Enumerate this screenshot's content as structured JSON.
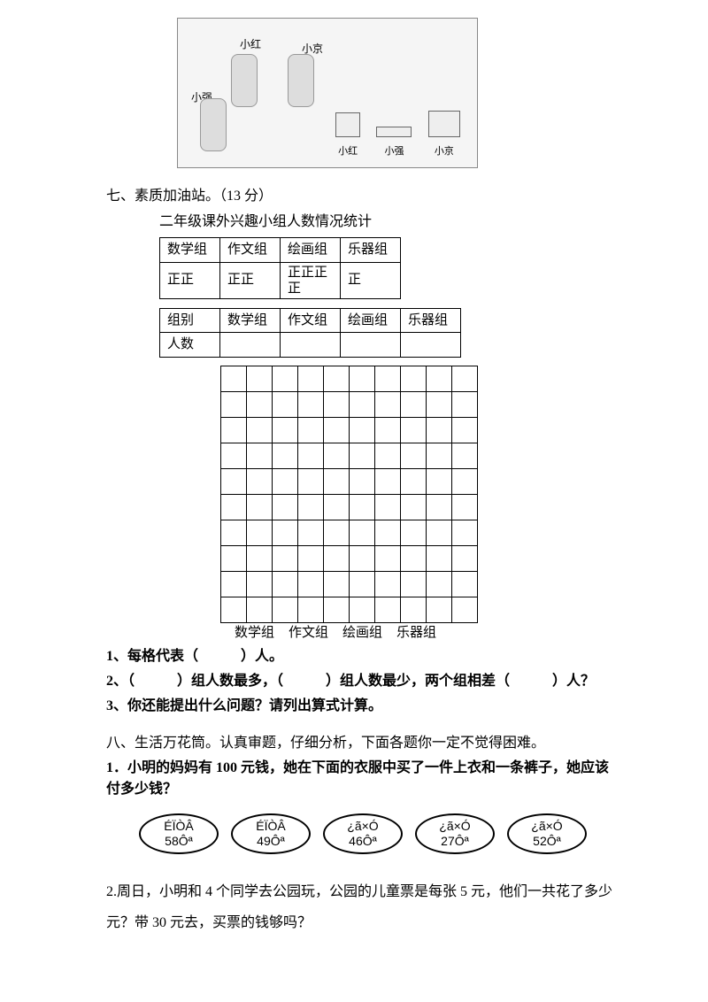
{
  "topImage": {
    "labels": {
      "xiaohong": "小红",
      "xiaojing": "小京",
      "xiaoqiang": "小强"
    },
    "rightLabels": [
      "小红",
      "小强",
      "小京"
    ]
  },
  "section7": {
    "title": "七、素质加油站。（13 分）",
    "subtitle": "二年级课外兴趣小组人数情况统计",
    "table1": {
      "headers": [
        "数学组",
        "作文组",
        "绘画组",
        "乐器组"
      ],
      "row": [
        "正正",
        "正正",
        "正正正正",
        "正"
      ]
    },
    "table2": {
      "headers": [
        "组别",
        "数学组",
        "作文组",
        "绘画组",
        "乐器组"
      ],
      "row1": "人数"
    },
    "gridLabels": [
      "数学组",
      "作文组",
      "绘画组",
      "乐器组"
    ],
    "gridRows": 10,
    "gridCols": 10,
    "q1": "1、每格代表（　　　）人。",
    "q2": "2、（　　　）组人数最多，（　　　）组人数最少，两个组相差（　　　）人？",
    "q3": "3、你还能提出什么问题？请列出算式计算。"
  },
  "section8": {
    "title": "八、生活万花筒。认真审题，仔细分析，下面各题你一定不觉得困难。",
    "q1title": "1．小明的妈妈有 100 元钱，她在下面的衣服中买了一件上衣和一条裤子，她应该付多少钱？",
    "prices": [
      {
        "label": "ÉÏÒÂ",
        "value": "58Ôª"
      },
      {
        "label": "ÉÏÒÂ",
        "value": "49Ôª"
      },
      {
        "label": "¿ã×Ó",
        "value": "46Ôª"
      },
      {
        "label": "¿ã×Ó",
        "value": "27Ôª"
      },
      {
        "label": "¿ã×Ó",
        "value": "52Ôª"
      }
    ],
    "q2": "2.周日，小明和 4 个同学去公园玩，公园的儿童票是每张 5 元，他们一共花了多少元？带 30 元去，买票的钱够吗？"
  }
}
